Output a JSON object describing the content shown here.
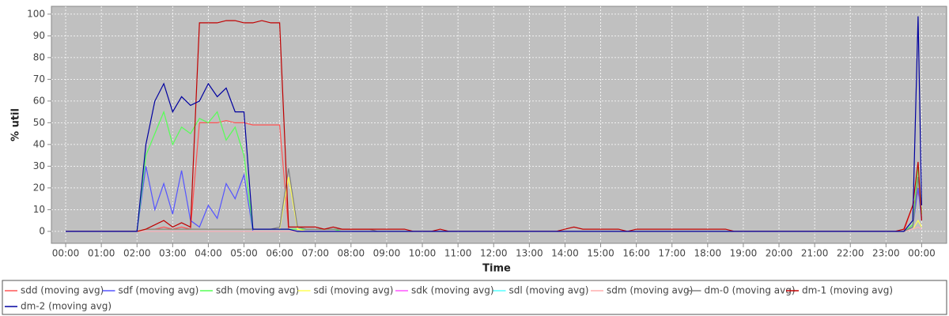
{
  "chart_data": {
    "type": "line",
    "ylabel": "% util",
    "xlabel": "Time",
    "x": [
      0,
      0.25,
      0.5,
      0.75,
      1,
      1.25,
      1.5,
      1.75,
      2,
      2.25,
      2.5,
      2.75,
      3,
      3.25,
      3.5,
      3.75,
      4,
      4.25,
      4.5,
      4.75,
      5,
      5.25,
      5.5,
      5.75,
      6,
      6.25,
      6.5,
      6.75,
      7,
      7.25,
      7.5,
      7.75,
      8,
      8.25,
      8.5,
      8.75,
      9,
      9.25,
      9.5,
      9.75,
      10,
      10.25,
      10.5,
      10.75,
      11,
      11.25,
      11.5,
      11.75,
      12,
      12.25,
      12.5,
      12.75,
      13,
      13.25,
      13.5,
      13.75,
      14,
      14.25,
      14.5,
      14.75,
      15,
      15.25,
      15.5,
      15.75,
      16,
      16.25,
      16.5,
      16.75,
      17,
      17.25,
      17.5,
      17.75,
      18,
      18.25,
      18.5,
      18.75,
      19,
      19.25,
      19.5,
      19.75,
      20,
      20.25,
      20.5,
      20.75,
      21,
      21.25,
      21.5,
      21.75,
      22,
      22.25,
      22.5,
      22.75,
      23,
      23.25,
      23.5,
      23.75,
      23.9,
      24
    ],
    "series": [
      {
        "name": "sdd (moving avg)",
        "color": "#ff5555",
        "values": [
          0,
          0,
          0,
          0,
          0,
          0,
          0,
          0,
          0,
          1,
          1,
          2,
          1,
          2,
          1,
          50,
          50,
          50,
          51,
          50,
          50,
          49,
          49,
          49,
          49,
          1,
          1,
          1,
          1,
          1,
          1,
          1,
          1,
          1,
          1,
          0,
          0,
          0,
          0,
          0,
          0,
          0,
          0,
          0,
          0,
          0,
          0,
          0,
          0,
          0,
          0,
          0,
          0,
          0,
          0,
          0,
          0,
          0,
          0,
          0,
          0,
          0,
          0,
          0,
          0,
          0,
          0,
          0,
          0,
          0,
          0,
          0,
          0,
          0,
          0,
          0,
          0,
          0,
          0,
          0,
          0,
          0,
          0,
          0,
          0,
          0,
          0,
          0,
          0,
          0,
          0,
          0,
          0,
          0,
          0,
          12,
          18,
          10
        ]
      },
      {
        "name": "sdf (moving avg)",
        "color": "#5555ff",
        "values": [
          0,
          0,
          0,
          0,
          0,
          0,
          0,
          0,
          0,
          30,
          10,
          22,
          8,
          28,
          5,
          2,
          12,
          6,
          22,
          15,
          26,
          0,
          0,
          0,
          0,
          0,
          0,
          0,
          0,
          0,
          0,
          0,
          0,
          0,
          0,
          0,
          0,
          0,
          0,
          0,
          0,
          0,
          0,
          0,
          0,
          0,
          0,
          0,
          0,
          0,
          0,
          0,
          0,
          0,
          0,
          0,
          0,
          0,
          0,
          0,
          0,
          0,
          0,
          0,
          0,
          0,
          0,
          0,
          0,
          0,
          0,
          0,
          0,
          0,
          0,
          0,
          0,
          0,
          0,
          0,
          0,
          0,
          0,
          0,
          0,
          0,
          0,
          0,
          0,
          0,
          0,
          0,
          0,
          0,
          0,
          2,
          20,
          5
        ]
      },
      {
        "name": "sdh (moving avg)",
        "color": "#55ff55",
        "values": [
          0,
          0,
          0,
          0,
          0,
          0,
          0,
          0,
          0,
          35,
          45,
          55,
          40,
          48,
          45,
          52,
          50,
          55,
          42,
          48,
          35,
          1,
          1,
          1,
          1,
          1,
          1,
          1,
          1,
          1,
          1,
          0,
          0,
          0,
          0,
          0,
          0,
          0,
          0,
          0,
          0,
          0,
          0,
          0,
          0,
          0,
          0,
          0,
          0,
          0,
          0,
          0,
          0,
          0,
          0,
          0,
          0,
          0,
          0,
          0,
          0,
          0,
          0,
          0,
          0,
          0,
          0,
          0,
          0,
          0,
          0,
          0,
          0,
          0,
          0,
          0,
          0,
          0,
          0,
          0,
          0,
          0,
          0,
          0,
          0,
          0,
          0,
          0,
          0,
          0,
          0,
          0,
          0,
          0,
          0,
          3,
          30,
          8
        ]
      },
      {
        "name": "sdi (moving avg)",
        "color": "#ffff55",
        "values": [
          0,
          0,
          0,
          0,
          0,
          0,
          0,
          0,
          0,
          1,
          1,
          1,
          1,
          1,
          1,
          1,
          1,
          1,
          1,
          1,
          1,
          1,
          1,
          1,
          1,
          25,
          1,
          0,
          0,
          0,
          0,
          0,
          0,
          0,
          0,
          0,
          0,
          0,
          0,
          0,
          0,
          0,
          0,
          0,
          0,
          0,
          0,
          0,
          0,
          0,
          0,
          0,
          0,
          0,
          0,
          0,
          0,
          0,
          0,
          0,
          0,
          0,
          0,
          0,
          0,
          0,
          0,
          0,
          0,
          0,
          0,
          0,
          0,
          0,
          0,
          0,
          0,
          0,
          0,
          0,
          0,
          0,
          0,
          0,
          0,
          0,
          0,
          0,
          0,
          0,
          0,
          0,
          0,
          0,
          0,
          1,
          5,
          2
        ]
      },
      {
        "name": "sdk (moving avg)",
        "color": "#ff55ff",
        "values": [
          0,
          0,
          0,
          0,
          0,
          0,
          0,
          0,
          0,
          0,
          0,
          0,
          0,
          0,
          0,
          0,
          0,
          0,
          0,
          0,
          0,
          0,
          0,
          0,
          0,
          0,
          0,
          0,
          0,
          0,
          0,
          0,
          0,
          0,
          0,
          0,
          0,
          0,
          0,
          0,
          0,
          0,
          0,
          0,
          0,
          0,
          0,
          0,
          0,
          0,
          0,
          0,
          0,
          0,
          0,
          0,
          0,
          0,
          0,
          0,
          0,
          0,
          0,
          0,
          0,
          0,
          0,
          0,
          0,
          0,
          0,
          0,
          0,
          0,
          0,
          0,
          0,
          0,
          0,
          0,
          0,
          0,
          0,
          0,
          0,
          0,
          0,
          0,
          0,
          0,
          0,
          0,
          0,
          0,
          0,
          1,
          2,
          1
        ]
      },
      {
        "name": "sdl (moving avg)",
        "color": "#55ffff",
        "values": [
          0,
          0,
          0,
          0,
          0,
          0,
          0,
          0,
          0,
          0,
          0,
          0,
          0,
          0,
          0,
          0,
          0,
          0,
          0,
          0,
          0,
          0,
          0,
          0,
          0,
          0,
          0,
          0,
          0,
          0,
          0,
          0,
          0,
          0,
          0,
          0,
          0,
          0,
          0,
          0,
          0,
          0,
          0,
          0,
          0,
          0,
          0,
          0,
          0,
          0,
          0,
          0,
          0,
          0,
          0,
          0,
          0,
          0,
          0,
          0,
          0,
          0,
          0,
          0,
          0,
          0,
          0,
          0,
          0,
          0,
          0,
          0,
          0,
          0,
          0,
          0,
          0,
          0,
          0,
          0,
          0,
          0,
          0,
          0,
          0,
          0,
          0,
          0,
          0,
          0,
          0,
          0,
          0,
          0,
          0,
          1,
          2,
          1
        ]
      },
      {
        "name": "sdm (moving avg)",
        "color": "#ffafaf",
        "values": [
          0,
          0,
          0,
          0,
          0,
          0,
          0,
          0,
          0,
          0,
          0,
          0,
          0,
          0,
          0,
          0,
          0,
          0,
          0,
          0,
          0,
          0,
          0,
          0,
          0,
          0,
          0,
          0,
          0,
          0,
          0,
          0,
          0,
          0,
          0,
          0,
          0,
          0,
          0,
          0,
          0,
          0,
          0,
          0,
          0,
          0,
          0,
          0,
          0,
          0,
          0,
          0,
          0,
          0,
          0,
          0,
          0,
          0,
          0,
          0,
          0,
          0,
          0,
          0,
          0,
          0,
          0,
          0,
          0,
          0,
          0,
          0,
          0,
          0,
          0,
          0,
          0,
          0,
          0,
          0,
          0,
          0,
          0,
          0,
          0,
          0,
          0,
          0,
          0,
          0,
          0,
          0,
          0,
          0,
          0,
          1,
          2,
          1
        ]
      },
      {
        "name": "dm-0 (moving avg)",
        "color": "#808080",
        "values": [
          0,
          0,
          0,
          0,
          0,
          0,
          0,
          0,
          0,
          1,
          1,
          1,
          1,
          1,
          1,
          1,
          1,
          1,
          1,
          1,
          1,
          1,
          1,
          1,
          2,
          29,
          2,
          1,
          1,
          1,
          1,
          1,
          1,
          1,
          1,
          0,
          0,
          0,
          0,
          0,
          0,
          0,
          0,
          0,
          0,
          0,
          0,
          0,
          0,
          0,
          0,
          0,
          0,
          0,
          0,
          0,
          0,
          0,
          0,
          0,
          0,
          0,
          0,
          0,
          0,
          0,
          0,
          0,
          0,
          0,
          0,
          0,
          0,
          0,
          0,
          0,
          0,
          0,
          0,
          0,
          0,
          0,
          0,
          0,
          0,
          0,
          0,
          0,
          0,
          0,
          0,
          0,
          0,
          0,
          0,
          2,
          25,
          6
        ]
      },
      {
        "name": "dm-1 (moving avg)",
        "color": "#c00000",
        "values": [
          0,
          0,
          0,
          0,
          0,
          0,
          0,
          0,
          0,
          1,
          3,
          5,
          2,
          4,
          2,
          96,
          96,
          96,
          97,
          97,
          96,
          96,
          97,
          96,
          96,
          2,
          2,
          2,
          2,
          1,
          2,
          1,
          1,
          1,
          1,
          1,
          1,
          1,
          1,
          0,
          0,
          0,
          1,
          0,
          0,
          0,
          0,
          0,
          0,
          0,
          0,
          0,
          0,
          0,
          0,
          0,
          1,
          2,
          1,
          1,
          1,
          1,
          1,
          0,
          1,
          1,
          1,
          1,
          1,
          1,
          1,
          1,
          1,
          1,
          1,
          0,
          0,
          0,
          0,
          0,
          0,
          0,
          0,
          0,
          0,
          0,
          0,
          0,
          0,
          0,
          0,
          0,
          0,
          0,
          1,
          12,
          32,
          5
        ]
      },
      {
        "name": "dm-2 (moving avg)",
        "color": "#0000a0",
        "values": [
          0,
          0,
          0,
          0,
          0,
          0,
          0,
          0,
          0,
          40,
          60,
          68,
          55,
          62,
          58,
          60,
          68,
          62,
          66,
          55,
          55,
          1,
          1,
          1,
          1,
          1,
          0,
          0,
          0,
          0,
          0,
          0,
          0,
          0,
          0,
          0,
          0,
          0,
          0,
          0,
          0,
          0,
          0,
          0,
          0,
          0,
          0,
          0,
          0,
          0,
          0,
          0,
          0,
          0,
          0,
          0,
          0,
          0,
          0,
          0,
          0,
          0,
          0,
          0,
          0,
          0,
          0,
          0,
          0,
          0,
          0,
          0,
          0,
          0,
          0,
          0,
          0,
          0,
          0,
          0,
          0,
          0,
          0,
          0,
          0,
          0,
          0,
          0,
          0,
          0,
          0,
          0,
          0,
          0,
          0,
          5,
          99,
          12
        ]
      }
    ],
    "xlim": [
      -0.4,
      24.7
    ],
    "ylim": [
      -5.5,
      103.6
    ],
    "xticks": [
      {
        "value": 0,
        "label": "00:00"
      },
      {
        "value": 1,
        "label": "01:00"
      },
      {
        "value": 2,
        "label": "02:00"
      },
      {
        "value": 3,
        "label": "03:00"
      },
      {
        "value": 4,
        "label": "04:00"
      },
      {
        "value": 5,
        "label": "05:00"
      },
      {
        "value": 6,
        "label": "06:00"
      },
      {
        "value": 7,
        "label": "07:00"
      },
      {
        "value": 8,
        "label": "08:00"
      },
      {
        "value": 9,
        "label": "09:00"
      },
      {
        "value": 10,
        "label": "10:00"
      },
      {
        "value": 11,
        "label": "11:00"
      },
      {
        "value": 12,
        "label": "12:00"
      },
      {
        "value": 13,
        "label": "13:00"
      },
      {
        "value": 14,
        "label": "14:00"
      },
      {
        "value": 15,
        "label": "15:00"
      },
      {
        "value": 16,
        "label": "16:00"
      },
      {
        "value": 17,
        "label": "17:00"
      },
      {
        "value": 18,
        "label": "18:00"
      },
      {
        "value": 19,
        "label": "19:00"
      },
      {
        "value": 20,
        "label": "20:00"
      },
      {
        "value": 21,
        "label": "21:00"
      },
      {
        "value": 22,
        "label": "22:00"
      },
      {
        "value": 23,
        "label": "23:00"
      },
      {
        "value": 24,
        "label": "00:00"
      }
    ],
    "yticks": [
      0,
      10,
      20,
      30,
      40,
      50,
      60,
      70,
      80,
      90,
      100
    ],
    "grid": true
  }
}
